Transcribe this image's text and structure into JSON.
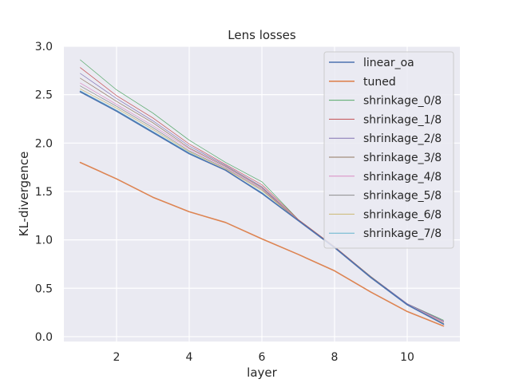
{
  "chart_data": {
    "type": "line",
    "title": "Lens losses",
    "xlabel": "layer",
    "ylabel": "KL-divergence",
    "xlim": [
      0.55,
      11.45
    ],
    "ylim": [
      -0.05,
      3.0
    ],
    "xticks": [
      2,
      4,
      6,
      8,
      10
    ],
    "yticks": [
      0.0,
      0.5,
      1.0,
      1.5,
      2.0,
      2.5,
      3.0
    ],
    "xtick_labels": [
      "2",
      "4",
      "6",
      "8",
      "10"
    ],
    "ytick_labels": [
      "0.0",
      "0.5",
      "1.0",
      "1.5",
      "2.0",
      "2.5",
      "3.0"
    ],
    "grid": true,
    "legend_position": "top-right",
    "x": [
      1,
      2,
      3,
      4,
      5,
      6,
      7,
      8,
      9,
      10,
      11
    ],
    "series": [
      {
        "name": "linear_oa",
        "color": "#4c72b0",
        "width": 1.6,
        "values": [
          2.53,
          2.33,
          2.11,
          1.89,
          1.72,
          1.48,
          1.2,
          0.92,
          0.61,
          0.33,
          0.13
        ]
      },
      {
        "name": "tuned",
        "color": "#dd8452",
        "width": 1.6,
        "values": [
          1.8,
          1.63,
          1.44,
          1.29,
          1.18,
          1.01,
          0.85,
          0.68,
          0.46,
          0.26,
          0.11
        ]
      },
      {
        "name": "shrinkage_0/8",
        "color": "#55a868",
        "width": 0.7,
        "values": [
          2.86,
          2.55,
          2.31,
          2.03,
          1.8,
          1.6,
          1.21,
          0.93,
          0.62,
          0.34,
          0.17
        ]
      },
      {
        "name": "shrinkage_1/8",
        "color": "#c44e52",
        "width": 0.7,
        "values": [
          2.78,
          2.49,
          2.26,
          1.99,
          1.78,
          1.57,
          1.21,
          0.93,
          0.62,
          0.34,
          0.16
        ]
      },
      {
        "name": "shrinkage_2/8",
        "color": "#8172b3",
        "width": 0.7,
        "values": [
          2.72,
          2.46,
          2.23,
          1.97,
          1.77,
          1.55,
          1.2,
          0.92,
          0.62,
          0.34,
          0.16
        ]
      },
      {
        "name": "shrinkage_3/8",
        "color": "#937860",
        "width": 0.7,
        "values": [
          2.67,
          2.43,
          2.21,
          1.95,
          1.76,
          1.54,
          1.2,
          0.92,
          0.62,
          0.33,
          0.15
        ]
      },
      {
        "name": "shrinkage_4/8",
        "color": "#da8bc3",
        "width": 0.7,
        "values": [
          2.62,
          2.4,
          2.18,
          1.94,
          1.75,
          1.53,
          1.2,
          0.92,
          0.61,
          0.33,
          0.15
        ]
      },
      {
        "name": "shrinkage_5/8",
        "color": "#8c8c8c",
        "width": 0.7,
        "values": [
          2.59,
          2.38,
          2.16,
          1.92,
          1.74,
          1.52,
          1.2,
          0.92,
          0.61,
          0.33,
          0.14
        ]
      },
      {
        "name": "shrinkage_6/8",
        "color": "#ccb974",
        "width": 0.7,
        "values": [
          2.56,
          2.36,
          2.14,
          1.91,
          1.73,
          1.51,
          1.2,
          0.92,
          0.61,
          0.33,
          0.14
        ]
      },
      {
        "name": "shrinkage_7/8",
        "color": "#64b5cd",
        "width": 0.7,
        "values": [
          2.54,
          2.34,
          2.12,
          1.9,
          1.72,
          1.49,
          1.2,
          0.92,
          0.61,
          0.33,
          0.13
        ]
      }
    ]
  }
}
